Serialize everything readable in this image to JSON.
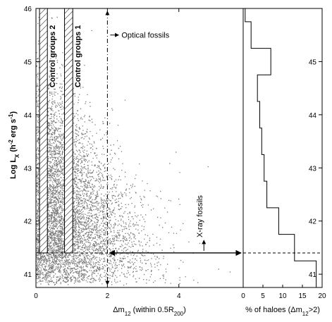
{
  "chart_data": [
    {
      "type": "scatter",
      "xlabel": "Δm",
      "xlabel_sub": "12",
      "xlabel_rest": " (within 0.5R",
      "xlabel_sub2": "200",
      "xlabel_end": ")",
      "ylabel_main": "Log L",
      "ylabel_sub": "X",
      "ylabel_paren_open": " (h",
      "ylabel_sup1": "-2",
      "ylabel_mid": " erg s",
      "ylabel_sup2": "-1",
      "ylabel_paren_close": ")",
      "xlim": [
        0,
        5.8
      ],
      "ylim": [
        40.75,
        46
      ],
      "x_ticks": [
        "0",
        "2",
        "4"
      ],
      "x_tick_values": [
        0,
        2,
        4
      ],
      "y_ticks": [
        "41",
        "42",
        "43",
        "44",
        "45",
        "46"
      ],
      "y_tick_values": [
        41,
        42,
        43,
        44,
        45,
        46
      ],
      "marker_color": "#7a7a7a",
      "control_groups": [
        {
          "label": "Control groups 2",
          "x_range": [
            0.1,
            0.32
          ],
          "y_range": [
            41.4,
            46
          ]
        },
        {
          "label": "Control groups 1",
          "x_range": [
            0.8,
            1.03
          ],
          "y_range": [
            41.4,
            46
          ]
        }
      ],
      "optical_threshold_x": 2.0,
      "xray_threshold_y": 41.4,
      "annotations": [
        {
          "text": "Optical fossils",
          "x": 2.0,
          "y": 45.5
        },
        {
          "text": "X-ray fossils",
          "x": 4.7,
          "y": 41.5
        }
      ]
    },
    {
      "type": "line",
      "xlabel_pre": "% of haloes (Δm",
      "xlabel_sub": "12",
      "xlabel_post": ">2)",
      "xlim": [
        0,
        20
      ],
      "ylim": [
        40.75,
        46
      ],
      "x_ticks": [
        "0",
        "5",
        "10",
        "15",
        "20"
      ],
      "x_tick_values": [
        0,
        5,
        10,
        15,
        20
      ],
      "y_ticks": [
        "41",
        "42",
        "43",
        "44",
        "45"
      ],
      "y_tick_values": [
        41,
        42,
        43,
        44,
        45
      ],
      "step_bins": [
        {
          "y_low": 40.75,
          "y_high": 41.25,
          "pct": 18.5
        },
        {
          "y_low": 41.25,
          "y_high": 41.75,
          "pct": 13.0
        },
        {
          "y_low": 41.75,
          "y_high": 42.25,
          "pct": 9.0
        },
        {
          "y_low": 42.25,
          "y_high": 42.75,
          "pct": 6.0
        },
        {
          "y_low": 42.75,
          "y_high": 43.25,
          "pct": 5.3
        },
        {
          "y_low": 43.25,
          "y_high": 43.75,
          "pct": 4.7
        },
        {
          "y_low": 43.75,
          "y_high": 44.25,
          "pct": 4.2
        },
        {
          "y_low": 44.25,
          "y_high": 44.75,
          "pct": 3.6
        },
        {
          "y_low": 44.75,
          "y_high": 45.25,
          "pct": 7.0
        },
        {
          "y_low": 45.25,
          "y_high": 45.75,
          "pct": 2.0
        },
        {
          "y_low": 45.75,
          "y_high": 46.0,
          "pct": 0.5
        }
      ],
      "xray_threshold_y": 41.4
    }
  ]
}
